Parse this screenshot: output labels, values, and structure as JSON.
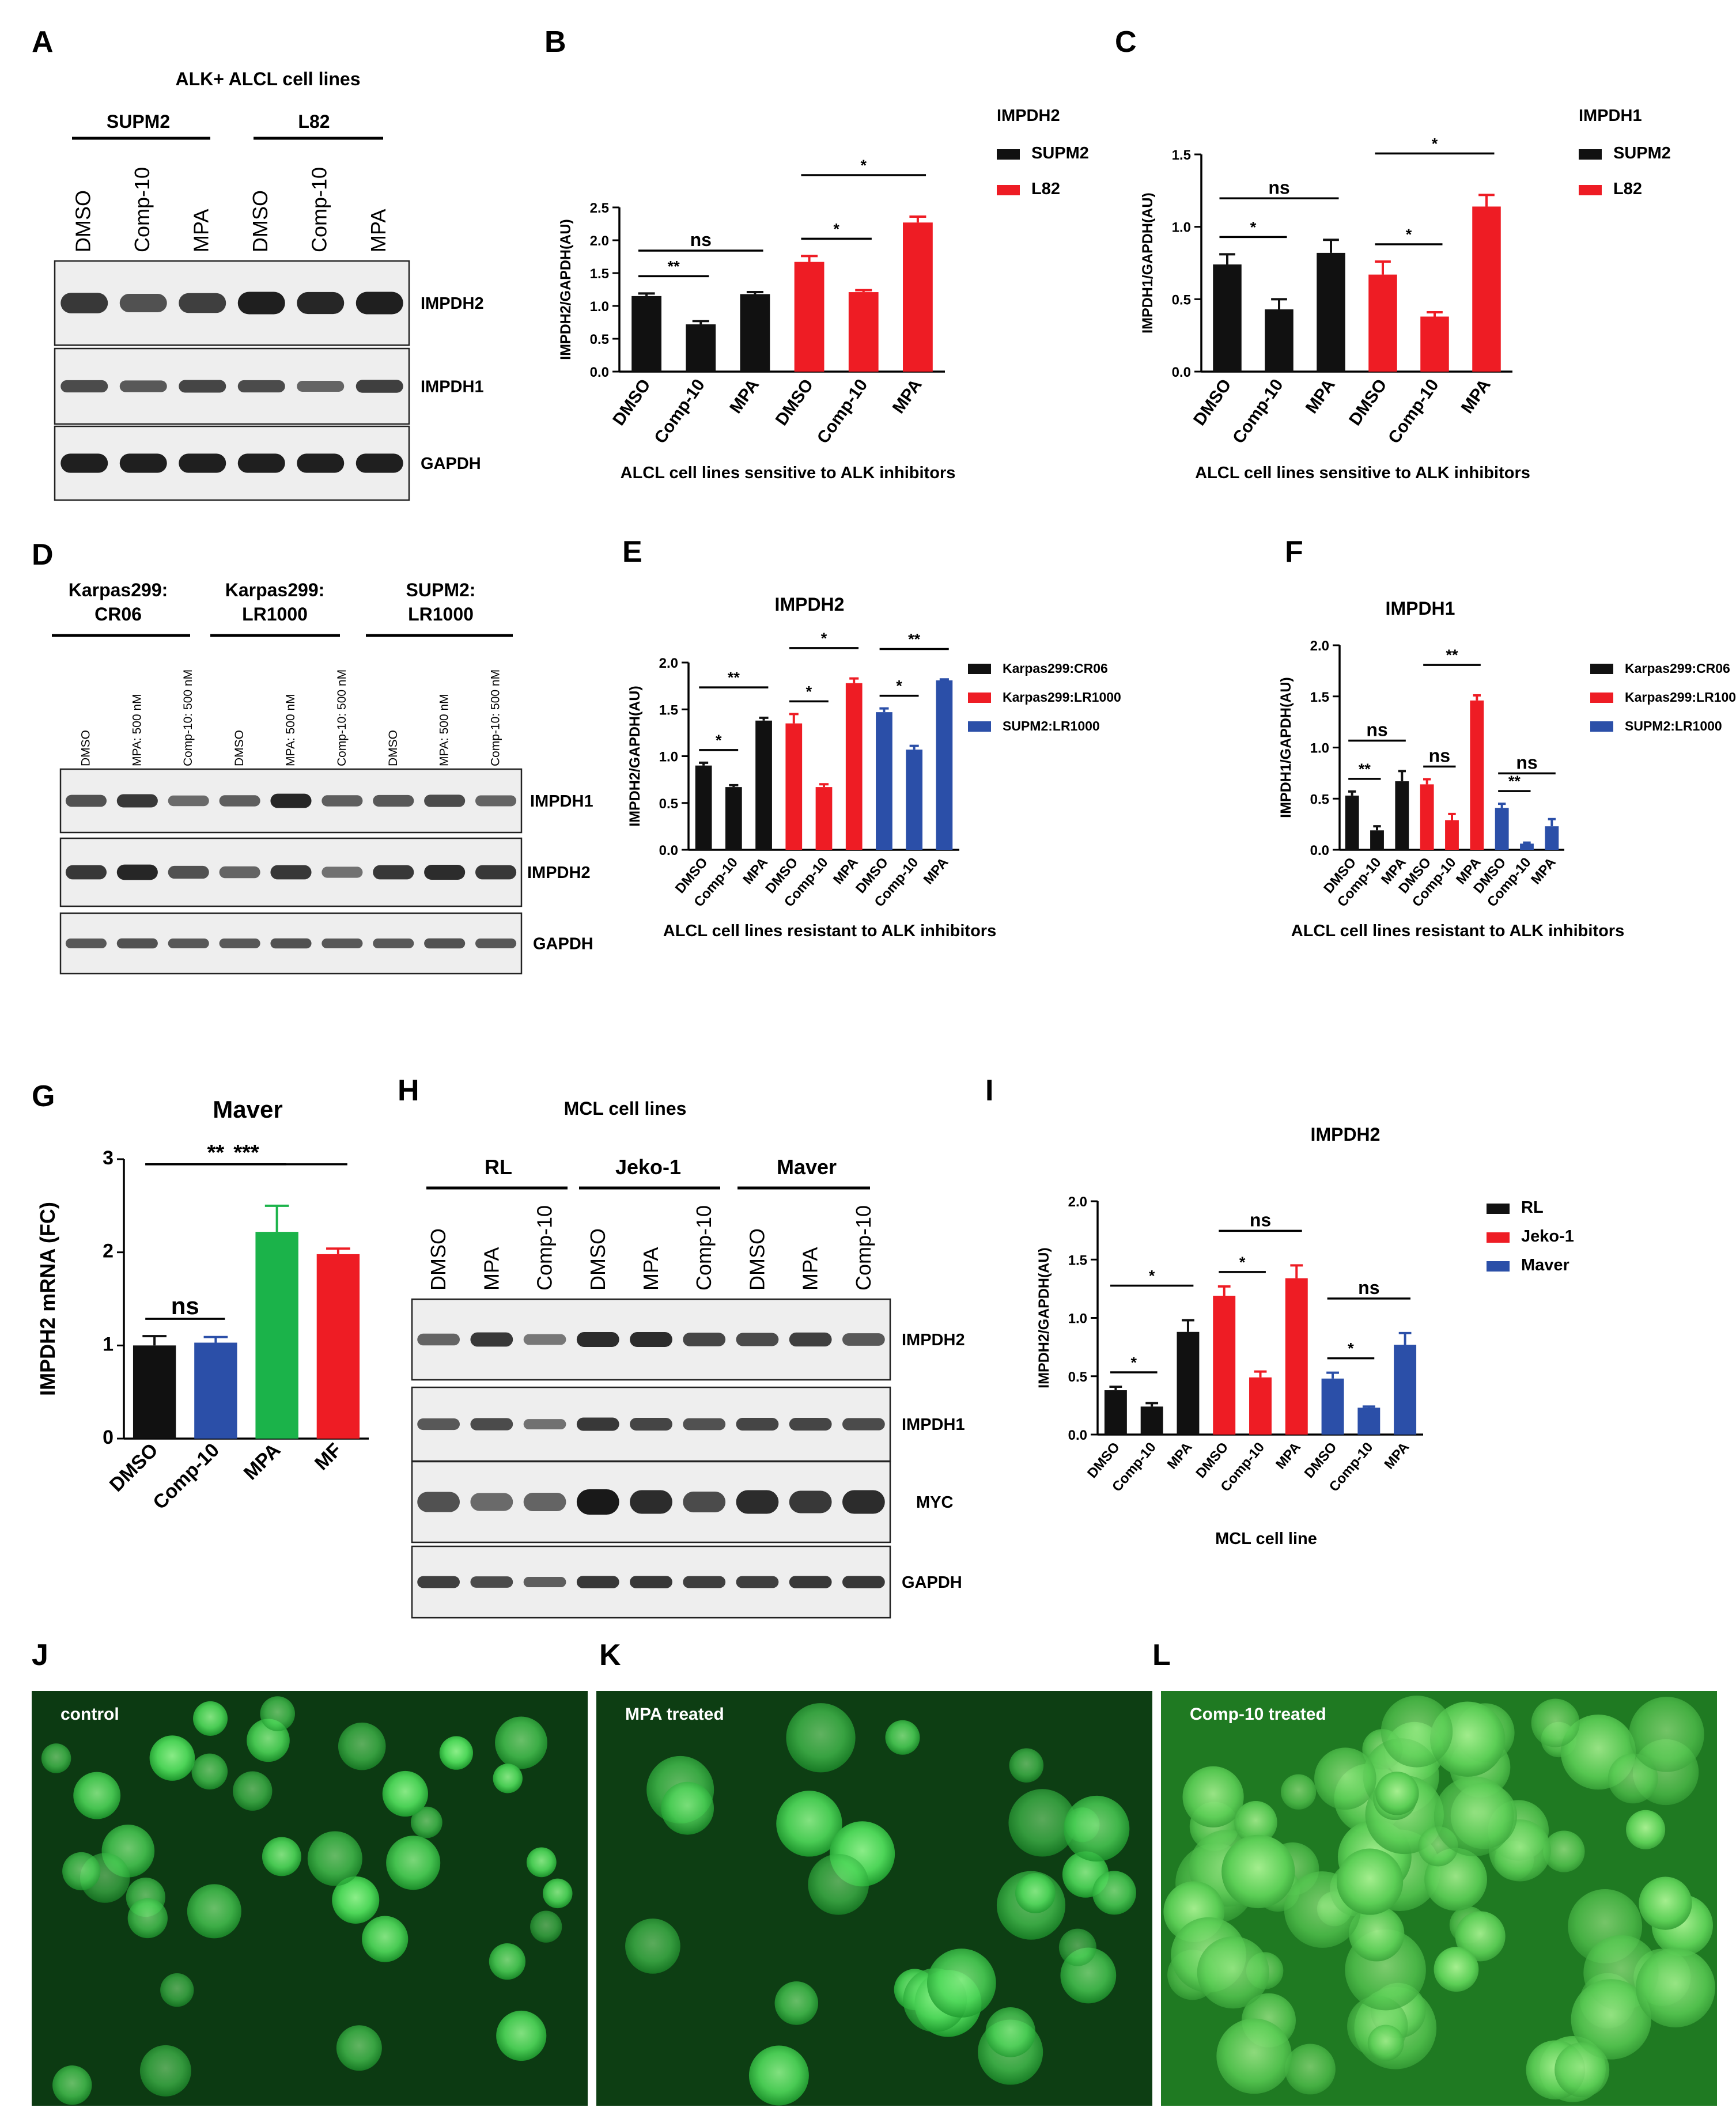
{
  "panel_letters": [
    "A",
    "B",
    "C",
    "D",
    "E",
    "F",
    "G",
    "H",
    "I",
    "J",
    "K",
    "L"
  ],
  "colors": {
    "black": "#111111",
    "red": "#ee1c24",
    "blue": "#2b4fa8",
    "green": "#1bb34a"
  },
  "blot_A": {
    "title": "ALK+ ALCL cell lines",
    "groups": [
      "SUPM2",
      "L82"
    ],
    "lanes": [
      "DMSO",
      "Comp-10",
      "MPA",
      "DMSO",
      "Comp-10",
      "MPA"
    ],
    "bands": [
      "IMPDH2",
      "IMPDH1",
      "GAPDH"
    ]
  },
  "blot_D": {
    "groups": [
      [
        "Karpas299:",
        "CR06"
      ],
      [
        "Karpas299:",
        "LR1000"
      ],
      [
        "SUPM2:",
        "LR1000"
      ]
    ],
    "lanes": [
      "DMSO",
      "MPA: 500 nM",
      "Comp-10: 500 nM",
      "DMSO",
      "MPA: 500 nM",
      "Comp-10: 500 nM",
      "DMSO",
      "MPA: 500 nM",
      "Comp-10: 500 nM"
    ],
    "bands": [
      "IMPDH1",
      "IMPDH2",
      "GAPDH"
    ]
  },
  "blot_H": {
    "title": "MCL cell lines",
    "groups": [
      "RL",
      "Jeko-1",
      "Maver"
    ],
    "lanes": [
      "DMSO",
      "MPA",
      "Comp-10",
      "DMSO",
      "MPA",
      "Comp-10",
      "DMSO",
      "MPA",
      "Comp-10"
    ],
    "bands": [
      "IMPDH2",
      "IMPDH1",
      "MYC",
      "GAPDH"
    ]
  },
  "chart_data": [
    {
      "panel": "B",
      "type": "bar",
      "legend_title": "IMPDH2",
      "ylabel": "IMPDH2/GAPDH(AU)",
      "xlabel": "ALCL cell lines  sensitive to ALK inhibitors",
      "categories": [
        "DMSO",
        "Comp-10",
        "MPA",
        "DMSO",
        "Comp-10",
        "MPA"
      ],
      "values": [
        1.15,
        0.72,
        1.18,
        1.67,
        1.21,
        2.27
      ],
      "errors": [
        0.04,
        0.05,
        0.03,
        0.09,
        0.03,
        0.09
      ],
      "series": [
        {
          "name": "SUPM2",
          "color": "#111111"
        },
        {
          "name": "L82",
          "color": "#ee1c24"
        }
      ],
      "bar_series": [
        0,
        0,
        0,
        1,
        1,
        1
      ],
      "ylim": [
        0,
        2.5
      ],
      "yticks": [
        "0.0",
        "0.5",
        "1.0",
        "1.5",
        "2.0",
        "2.5"
      ],
      "ytick_values": [
        0,
        0.5,
        1,
        1.5,
        2,
        2.5
      ],
      "significance": [
        {
          "from": 0,
          "to": 1,
          "label": "**"
        },
        {
          "from": 0,
          "to": 2,
          "label": "ns"
        },
        {
          "from": 3,
          "to": 4,
          "label": "*"
        },
        {
          "from": 3,
          "to": 5,
          "label": "*"
        }
      ]
    },
    {
      "panel": "C",
      "type": "bar",
      "legend_title": "IMPDH1",
      "ylabel": "IMPDH1/GAPDH(AU)",
      "xlabel": "ALCL cell lines  sensitive to ALK inhibitors",
      "categories": [
        "DMSO",
        "Comp-10",
        "MPA",
        "DMSO",
        "Comp-10",
        "MPA"
      ],
      "values": [
        0.74,
        0.43,
        0.82,
        0.67,
        0.38,
        1.14
      ],
      "errors": [
        0.07,
        0.07,
        0.09,
        0.09,
        0.03,
        0.08
      ],
      "series": [
        {
          "name": "SUPM2",
          "color": "#111111"
        },
        {
          "name": "L82",
          "color": "#ee1c24"
        }
      ],
      "bar_series": [
        0,
        0,
        0,
        1,
        1,
        1
      ],
      "ylim": [
        0,
        1.5
      ],
      "yticks": [
        "0.0",
        "0.5",
        "1.0",
        "1.5"
      ],
      "ytick_values": [
        0,
        0.5,
        1,
        1.5
      ],
      "significance": [
        {
          "from": 0,
          "to": 1,
          "label": "*"
        },
        {
          "from": 0,
          "to": 2,
          "label": "ns"
        },
        {
          "from": 3,
          "to": 4,
          "label": "*"
        },
        {
          "from": 3,
          "to": 5,
          "label": "*"
        }
      ]
    },
    {
      "panel": "E",
      "type": "bar",
      "title": "IMPDH2",
      "ylabel": "IMPDH2/GAPDH(AU)",
      "xlabel": "ALCL cell lines resistant to ALK inhibitors",
      "categories": [
        "DMSO",
        "Comp-10",
        "MPA",
        "DMSO",
        "Comp-10",
        "MPA",
        "DMSO",
        "Comp-10",
        "MPA"
      ],
      "values": [
        0.9,
        0.67,
        1.38,
        1.35,
        0.67,
        1.78,
        1.47,
        1.07,
        1.81
      ],
      "errors": [
        0.03,
        0.02,
        0.03,
        0.1,
        0.03,
        0.05,
        0.04,
        0.04,
        0.01
      ],
      "series": [
        {
          "name": "Karpas299:CR06",
          "color": "#111111"
        },
        {
          "name": "Karpas299:LR1000",
          "color": "#ee1c24"
        },
        {
          "name": "SUPM2:LR1000",
          "color": "#2b4fa8"
        }
      ],
      "bar_series": [
        0,
        0,
        0,
        1,
        1,
        1,
        2,
        2,
        2
      ],
      "ylim": [
        0,
        2
      ],
      "yticks": [
        "0.0",
        "0.5",
        "1.0",
        "1.5",
        "2.0"
      ],
      "ytick_values": [
        0,
        0.5,
        1,
        1.5,
        2
      ],
      "significance": [
        {
          "from": 0,
          "to": 1,
          "label": "*"
        },
        {
          "from": 0,
          "to": 2,
          "label": "**"
        },
        {
          "from": 3,
          "to": 4,
          "label": "*"
        },
        {
          "from": 3,
          "to": 5,
          "label": "*"
        },
        {
          "from": 6,
          "to": 7,
          "label": "*"
        },
        {
          "from": 6,
          "to": 8,
          "label": "**"
        }
      ]
    },
    {
      "panel": "F",
      "type": "bar",
      "title": "IMPDH1",
      "ylabel": "IMPDH1/GAPDH(AU)",
      "xlabel": "ALCL cell lines resistant to ALK inhibitors",
      "categories": [
        "DMSO",
        "Comp-10",
        "MPA",
        "DMSO",
        "Comp-10",
        "MPA",
        "DMSO",
        "Comp-10",
        "MPA"
      ],
      "values": [
        0.53,
        0.19,
        0.67,
        0.64,
        0.29,
        1.46,
        0.41,
        0.06,
        0.23
      ],
      "errors": [
        0.04,
        0.04,
        0.1,
        0.05,
        0.06,
        0.05,
        0.04,
        0.01,
        0.07
      ],
      "series": [
        {
          "name": "Karpas299:CR06",
          "color": "#111111"
        },
        {
          "name": "Karpas299:LR1000",
          "color": "#ee1c24"
        },
        {
          "name": "SUPM2:LR1000",
          "color": "#2b4fa8"
        }
      ],
      "bar_series": [
        0,
        0,
        0,
        1,
        1,
        1,
        2,
        2,
        2
      ],
      "ylim": [
        0,
        2
      ],
      "yticks": [
        "0.0",
        "0.5",
        "1.0",
        "1.5",
        "2.0"
      ],
      "ytick_values": [
        0,
        0.5,
        1,
        1.5,
        2
      ],
      "significance": [
        {
          "from": 0,
          "to": 1,
          "label": "**"
        },
        {
          "from": 0,
          "to": 2,
          "label": "ns"
        },
        {
          "from": 3,
          "to": 4,
          "label": "ns"
        },
        {
          "from": 3,
          "to": 5,
          "label": "**"
        },
        {
          "from": 6,
          "to": 7,
          "label": "**"
        },
        {
          "from": 6,
          "to": 8,
          "label": "ns"
        }
      ]
    },
    {
      "panel": "G",
      "type": "bar",
      "title": "Maver",
      "ylabel": "IMPDH2  mRNA (FC)",
      "categories": [
        "DMSO",
        "Comp-10",
        "MPA",
        "MF"
      ],
      "values": [
        1.0,
        1.03,
        2.22,
        1.98
      ],
      "errors": [
        0.1,
        0.06,
        0.28,
        0.06
      ],
      "bar_colors": [
        "#111111",
        "#2b4fa8",
        "#1bb34a",
        "#ee1c24"
      ],
      "ylim": [
        0,
        3
      ],
      "yticks": [
        "0",
        "1",
        "2",
        "3"
      ],
      "ytick_values": [
        0,
        1,
        2,
        3
      ],
      "significance": [
        {
          "from": 0,
          "to": 1,
          "label": "ns"
        },
        {
          "from": 0,
          "to": 2,
          "label": "**"
        },
        {
          "from": 0,
          "to": 3,
          "label": "***"
        }
      ]
    },
    {
      "panel": "I",
      "type": "bar",
      "title": "IMPDH2",
      "ylabel": "IMPDH2/GAPDH(AU)",
      "xlabel": "MCL cell line",
      "categories": [
        "DMSO",
        "Comp-10",
        "MPA",
        "DMSO",
        "Comp-10",
        "MPA",
        "DMSO",
        "Comp-10",
        "MPA"
      ],
      "values": [
        0.38,
        0.24,
        0.88,
        1.19,
        0.49,
        1.34,
        0.48,
        0.23,
        0.77
      ],
      "errors": [
        0.03,
        0.03,
        0.1,
        0.08,
        0.05,
        0.11,
        0.05,
        0.01,
        0.1
      ],
      "series": [
        {
          "name": "RL",
          "color": "#111111"
        },
        {
          "name": "Jeko-1",
          "color": "#ee1c24"
        },
        {
          "name": "Maver",
          "color": "#2b4fa8"
        }
      ],
      "bar_series": [
        0,
        0,
        0,
        1,
        1,
        1,
        2,
        2,
        2
      ],
      "ylim": [
        0,
        2
      ],
      "yticks": [
        "0.0",
        "0.5",
        "1.0",
        "1.5",
        "2.0"
      ],
      "ytick_values": [
        0,
        0.5,
        1,
        1.5,
        2
      ],
      "significance": [
        {
          "from": 0,
          "to": 1,
          "label": "*"
        },
        {
          "from": 0,
          "to": 2,
          "label": "*"
        },
        {
          "from": 3,
          "to": 4,
          "label": "*"
        },
        {
          "from": 3,
          "to": 5,
          "label": "ns"
        },
        {
          "from": 6,
          "to": 7,
          "label": "*"
        },
        {
          "from": 6,
          "to": 8,
          "label": "ns"
        }
      ]
    }
  ],
  "micrographs": [
    {
      "panel": "J",
      "label": "control"
    },
    {
      "panel": "K",
      "label": "MPA treated"
    },
    {
      "panel": "L",
      "label": "Comp-10 treated"
    }
  ]
}
